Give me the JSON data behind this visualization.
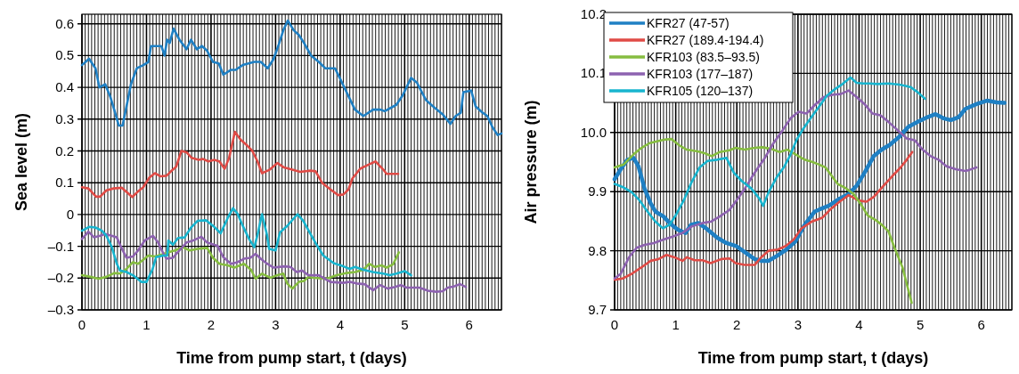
{
  "chart_data": [
    {
      "type": "line",
      "xlabel": "Time from pump start, t (days)",
      "ylabel": "Sea level (m)",
      "xlim": [
        0,
        6.5
      ],
      "ylim": [
        -0.3,
        0.63
      ],
      "xticks": [
        0,
        {
          "value": 0.05,
          "label": null
        },
        {
          "value": 0.1,
          "label": null
        },
        {
          "value": 0.15,
          "label": null
        },
        {
          "value": 0.2,
          "label": null
        },
        {
          "value": 0.25,
          "label": null
        },
        {
          "value": 0.3,
          "label": null
        },
        {
          "value": 0.35,
          "label": null
        },
        {
          "value": 0.4,
          "label": null
        },
        {
          "value": 0.45,
          "label": null
        },
        {
          "value": 0.5,
          "label": null
        },
        {
          "value": 0.55,
          "label": null
        },
        {
          "value": 0.6,
          "label": null
        },
        {
          "value": 0.65,
          "label": null
        },
        {
          "value": 0.7,
          "label": null
        },
        {
          "value": 0.75,
          "label": null
        },
        {
          "value": 0.8,
          "label": null
        },
        {
          "value": 0.85,
          "label": null
        },
        {
          "value": 0.9,
          "label": null
        },
        {
          "value": 0.95,
          "label": null
        },
        1,
        {
          "value": 1.05,
          "label": null
        },
        {
          "value": 1.1,
          "label": null
        },
        {
          "value": 1.15,
          "label": null
        },
        {
          "value": 1.2,
          "label": null
        },
        {
          "value": 1.25,
          "label": null
        },
        {
          "value": 1.3,
          "label": null
        },
        {
          "value": 1.35,
          "label": null
        },
        {
          "value": 1.4,
          "label": null
        },
        {
          "value": 1.45,
          "label": null
        },
        {
          "value": 1.5,
          "label": null
        },
        {
          "value": 1.55,
          "label": null
        },
        {
          "value": 1.6,
          "label": null
        },
        {
          "value": 1.65,
          "label": null
        },
        {
          "value": 1.7,
          "label": null
        },
        {
          "value": 1.75,
          "label": null
        },
        {
          "value": 1.8,
          "label": null
        },
        {
          "value": 1.85,
          "label": null
        },
        {
          "value": 1.9,
          "label": null
        },
        {
          "value": 1.95,
          "label": null
        },
        2,
        {
          "value": 2.05,
          "label": null
        },
        {
          "value": 2.1,
          "label": null
        },
        {
          "value": 2.15,
          "label": null
        },
        {
          "value": 2.2,
          "label": null
        },
        {
          "value": 2.25,
          "label": null
        },
        {
          "value": 2.3,
          "label": null
        },
        {
          "value": 2.35,
          "label": null
        },
        {
          "value": 2.4,
          "label": null
        },
        {
          "value": 2.45,
          "label": null
        },
        {
          "value": 2.5,
          "label": null
        },
        {
          "value": 2.55,
          "label": null
        },
        {
          "value": 2.6,
          "label": null
        },
        {
          "value": 2.65,
          "label": null
        },
        {
          "value": 2.7,
          "label": null
        },
        {
          "value": 2.75,
          "label": null
        },
        {
          "value": 2.8,
          "label": null
        },
        {
          "value": 2.85,
          "label": null
        },
        {
          "value": 2.9,
          "label": null
        },
        {
          "value": 2.95,
          "label": null
        },
        3,
        {
          "value": 3.05,
          "label": null
        },
        {
          "value": 3.1,
          "label": null
        },
        {
          "value": 3.15,
          "label": null
        },
        {
          "value": 3.2,
          "label": null
        },
        {
          "value": 3.25,
          "label": null
        },
        {
          "value": 3.3,
          "label": null
        },
        {
          "value": 3.35,
          "label": null
        },
        {
          "value": 3.4,
          "label": null
        },
        {
          "value": 3.45,
          "label": null
        },
        {
          "value": 3.5,
          "label": null
        },
        {
          "value": 3.55,
          "label": null
        },
        {
          "value": 3.6,
          "label": null
        },
        {
          "value": 3.65,
          "label": null
        },
        {
          "value": 3.7,
          "label": null
        },
        {
          "value": 3.75,
          "label": null
        },
        {
          "value": 3.8,
          "label": null
        },
        {
          "value": 3.85,
          "label": null
        },
        {
          "value": 3.9,
          "label": null
        },
        {
          "value": 3.95,
          "label": null
        },
        4,
        {
          "value": 4.05,
          "label": null
        },
        {
          "value": 4.1,
          "label": null
        },
        {
          "value": 4.15,
          "label": null
        },
        {
          "value": 4.2,
          "label": null
        },
        {
          "value": 4.25,
          "label": null
        },
        {
          "value": 4.3,
          "label": null
        },
        {
          "value": 4.35,
          "label": null
        },
        {
          "value": 4.4,
          "label": null
        },
        {
          "value": 4.45,
          "label": null
        },
        {
          "value": 4.5,
          "label": null
        },
        {
          "value": 4.55,
          "label": null
        },
        {
          "value": 4.6,
          "label": null
        },
        {
          "value": 4.65,
          "label": null
        },
        {
          "value": 4.7,
          "label": null
        },
        {
          "value": 4.75,
          "label": null
        },
        {
          "value": 4.8,
          "label": null
        },
        {
          "value": 4.85,
          "label": null
        },
        {
          "value": 4.9,
          "label": null
        },
        {
          "value": 4.95,
          "label": null
        },
        5,
        {
          "value": 5.05,
          "label": null
        },
        {
          "value": 5.1,
          "label": null
        },
        {
          "value": 5.15,
          "label": null
        },
        {
          "value": 5.2,
          "label": null
        },
        {
          "value": 5.25,
          "label": null
        },
        {
          "value": 5.3,
          "label": null
        },
        {
          "value": 5.35,
          "label": null
        },
        {
          "value": 5.4,
          "label": null
        },
        {
          "value": 5.45,
          "label": null
        },
        {
          "value": 5.5,
          "label": null
        },
        {
          "value": 5.55,
          "label": null
        },
        {
          "value": 5.6,
          "label": null
        },
        {
          "value": 5.65,
          "label": null
        },
        {
          "value": 5.7,
          "label": null
        },
        {
          "value": 5.75,
          "label": null
        },
        {
          "value": 5.8,
          "label": null
        },
        {
          "value": 5.85,
          "label": null
        },
        {
          "value": 5.9,
          "label": null
        },
        {
          "value": 5.95,
          "label": null
        },
        6,
        {
          "value": 6.05,
          "label": null
        },
        {
          "value": 6.1,
          "label": null
        },
        {
          "value": 6.15,
          "label": null
        },
        {
          "value": 6.2,
          "label": null
        },
        {
          "value": 6.25,
          "label": null
        },
        {
          "value": 6.3,
          "label": null
        },
        {
          "value": 6.35,
          "label": null
        },
        {
          "value": 6.4,
          "label": null
        },
        {
          "value": 6.45,
          "label": null
        },
        {
          "value": 6.5,
          "label": null
        }
      ],
      "yticks": [
        {
          "value": -0.3,
          "label": "–0.3"
        },
        {
          "value": -0.2,
          "label": "–0.2"
        },
        {
          "value": -0.1,
          "label": "–0.1"
        },
        0,
        0.1,
        0.2,
        0.3,
        0.4,
        0.5,
        0.6
      ],
      "grid": true,
      "line_style": "solid",
      "series": [
        {
          "color": "#1f80c4",
          "x": [
            0,
            0.11,
            0.21,
            0.27,
            0.36,
            0.44,
            0.5,
            0.57,
            0.63,
            0.69,
            0.76,
            0.85,
            0.95,
            1.03,
            1.07,
            1.18,
            1.23,
            1.28,
            1.32,
            1.36,
            1.42,
            1.51,
            1.62,
            1.69,
            1.78,
            1.86,
            1.94,
            2.03,
            2.12,
            2.19,
            2.31,
            2.38,
            2.49,
            2.67,
            2.77,
            2.88,
            2.97,
            3.05,
            3.12,
            3.19,
            3.28,
            3.36,
            3.44,
            3.55,
            3.67,
            3.77,
            3.92,
            3.97,
            4.1,
            4.23,
            4.36,
            4.51,
            4.62,
            4.69,
            4.87,
            4.97,
            5.1,
            5.19,
            5.33,
            5.44,
            5.59,
            5.71,
            5.79,
            5.87,
            5.91,
            6.03,
            6.1,
            6.21,
            6.28,
            6.36,
            6.44,
            6.5
          ],
          "values": [
            0.47,
            0.49,
            0.46,
            0.4,
            0.41,
            0.37,
            0.33,
            0.28,
            0.28,
            0.34,
            0.41,
            0.46,
            0.47,
            0.48,
            0.53,
            0.53,
            0.53,
            0.5,
            0.55,
            0.54,
            0.585,
            0.55,
            0.52,
            0.55,
            0.52,
            0.53,
            0.515,
            0.48,
            0.475,
            0.44,
            0.455,
            0.455,
            0.47,
            0.48,
            0.48,
            0.46,
            0.49,
            0.535,
            0.58,
            0.61,
            0.58,
            0.565,
            0.54,
            0.5,
            0.48,
            0.46,
            0.46,
            0.44,
            0.385,
            0.33,
            0.31,
            0.33,
            0.33,
            0.325,
            0.345,
            0.375,
            0.43,
            0.415,
            0.36,
            0.34,
            0.315,
            0.285,
            0.31,
            0.32,
            0.385,
            0.39,
            0.34,
            0.32,
            0.31,
            0.275,
            0.25,
            0.255
          ]
        },
        {
          "color": "#e04b46",
          "x": [
            0,
            0.1,
            0.22,
            0.28,
            0.38,
            0.49,
            0.62,
            0.69,
            0.78,
            0.86,
            0.95,
            1.04,
            1.13,
            1.22,
            1.31,
            1.38,
            1.46,
            1.54,
            1.62,
            1.7,
            1.81,
            1.87,
            1.96,
            2.05,
            2.13,
            2.21,
            2.28,
            2.37,
            2.46,
            2.55,
            2.64,
            2.72,
            2.79,
            2.9,
            3.03,
            3.13,
            3.26,
            3.38,
            3.54,
            3.62,
            3.72,
            3.85,
            3.97,
            4.05,
            4.13,
            4.19,
            4.31,
            4.44,
            4.55,
            4.67,
            4.72,
            4.79,
            4.9
          ],
          "values": [
            0.086,
            0.082,
            0.056,
            0.056,
            0.076,
            0.082,
            0.084,
            0.071,
            0.055,
            0.071,
            0.086,
            0.115,
            0.13,
            0.12,
            0.122,
            0.136,
            0.15,
            0.2,
            0.196,
            0.178,
            0.172,
            0.175,
            0.167,
            0.172,
            0.167,
            0.144,
            0.178,
            0.26,
            0.235,
            0.219,
            0.2,
            0.167,
            0.13,
            0.14,
            0.162,
            0.148,
            0.141,
            0.134,
            0.138,
            0.136,
            0.1,
            0.079,
            0.061,
            0.063,
            0.079,
            0.113,
            0.144,
            0.157,
            0.167,
            0.141,
            0.128,
            0.128,
            0.128
          ]
        },
        {
          "color": "#86bd40",
          "x": [
            0,
            0.13,
            0.26,
            0.38,
            0.5,
            0.59,
            0.69,
            0.79,
            0.87,
            0.97,
            1.03,
            1.13,
            1.23,
            1.33,
            1.44,
            1.56,
            1.67,
            1.79,
            1.94,
            2.03,
            2.13,
            2.26,
            2.36,
            2.51,
            2.62,
            2.69,
            2.79,
            2.92,
            3.03,
            3.12,
            3.18,
            3.26,
            3.36,
            3.44,
            3.51,
            3.59,
            3.79,
            3.95,
            4.1,
            4.23,
            4.36,
            4.45,
            4.54,
            4.64,
            4.72,
            4.82,
            4.91
          ],
          "values": [
            -0.191,
            -0.196,
            -0.202,
            -0.196,
            -0.184,
            -0.186,
            -0.171,
            -0.15,
            -0.155,
            -0.139,
            -0.129,
            -0.132,
            -0.126,
            -0.119,
            -0.113,
            -0.103,
            -0.113,
            -0.108,
            -0.105,
            -0.136,
            -0.155,
            -0.16,
            -0.167,
            -0.155,
            -0.174,
            -0.202,
            -0.186,
            -0.199,
            -0.191,
            -0.186,
            -0.217,
            -0.233,
            -0.212,
            -0.209,
            -0.196,
            -0.199,
            -0.202,
            -0.191,
            -0.184,
            -0.181,
            -0.174,
            -0.155,
            -0.165,
            -0.16,
            -0.167,
            -0.157,
            -0.119
          ]
        },
        {
          "color": "#8d62b0",
          "x": [
            0,
            0.1,
            0.19,
            0.28,
            0.36,
            0.46,
            0.54,
            0.62,
            0.69,
            0.79,
            0.87,
            0.97,
            1.1,
            1.18,
            1.26,
            1.31,
            1.41,
            1.51,
            1.62,
            1.72,
            1.85,
            1.94,
            2.04,
            2.1,
            2.19,
            2.31,
            2.41,
            2.51,
            2.61,
            2.69,
            2.77,
            2.87,
            2.97,
            3.13,
            3.23,
            3.33,
            3.41,
            3.51,
            3.67,
            3.85,
            4.05,
            4.15,
            4.26,
            4.38,
            4.51,
            4.62,
            4.74,
            4.85,
            4.94,
            5.03,
            5.23,
            5.36,
            5.49,
            5.59,
            5.67,
            5.77,
            5.86,
            5.95
          ],
          "values": [
            -0.077,
            -0.054,
            -0.072,
            -0.067,
            -0.061,
            -0.067,
            -0.072,
            -0.108,
            -0.136,
            -0.132,
            -0.113,
            -0.082,
            -0.067,
            -0.088,
            -0.122,
            -0.139,
            -0.136,
            -0.113,
            -0.088,
            -0.082,
            -0.07,
            -0.088,
            -0.095,
            -0.098,
            -0.134,
            -0.155,
            -0.15,
            -0.139,
            -0.136,
            -0.124,
            -0.139,
            -0.155,
            -0.167,
            -0.163,
            -0.165,
            -0.181,
            -0.176,
            -0.191,
            -0.191,
            -0.212,
            -0.215,
            -0.212,
            -0.217,
            -0.219,
            -0.238,
            -0.222,
            -0.233,
            -0.228,
            -0.222,
            -0.23,
            -0.23,
            -0.24,
            -0.243,
            -0.241,
            -0.23,
            -0.226,
            -0.219,
            -0.228
          ]
        },
        {
          "color": "#18b5cf",
          "x": [
            0,
            0.11,
            0.21,
            0.31,
            0.38,
            0.46,
            0.54,
            0.59,
            0.69,
            0.79,
            0.92,
            1.0,
            1.09,
            1.15,
            1.26,
            1.32,
            1.34,
            1.41,
            1.49,
            1.59,
            1.69,
            1.79,
            1.92,
            2.05,
            2.15,
            2.26,
            2.34,
            2.41,
            2.49,
            2.59,
            2.67,
            2.72,
            2.79,
            2.87,
            2.9,
            3.0,
            3.07,
            3.18,
            3.27,
            3.34,
            3.43,
            3.54,
            3.63,
            3.74,
            3.9,
            4.05,
            4.15,
            4.23,
            4.36,
            4.51,
            4.67,
            4.77,
            4.87,
            5.0,
            5.1
          ],
          "values": [
            -0.051,
            -0.039,
            -0.041,
            -0.051,
            -0.067,
            -0.101,
            -0.155,
            -0.176,
            -0.181,
            -0.191,
            -0.212,
            -0.212,
            -0.174,
            -0.134,
            -0.129,
            -0.129,
            -0.082,
            -0.095,
            -0.074,
            -0.072,
            -0.041,
            -0.02,
            -0.018,
            -0.039,
            -0.059,
            -0.01,
            0.02,
            0.003,
            -0.035,
            -0.077,
            -0.103,
            -0.064,
            0.001,
            -0.067,
            -0.108,
            -0.113,
            -0.056,
            -0.036,
            -0.015,
            0.001,
            -0.02,
            -0.061,
            -0.093,
            -0.129,
            -0.153,
            -0.163,
            -0.171,
            -0.165,
            -0.174,
            -0.181,
            -0.186,
            -0.191,
            -0.186,
            -0.178,
            -0.191
          ]
        }
      ]
    },
    {
      "type": "line",
      "xlabel": "Time from pump start, t (days)",
      "ylabel": "Air pressure (m)",
      "xlim": [
        0,
        6.5
      ],
      "ylim": [
        9.7,
        10.2
      ],
      "xticks": [
        0,
        {
          "value": 0.05,
          "label": null
        },
        {
          "value": 0.1,
          "label": null
        },
        {
          "value": 0.15,
          "label": null
        },
        {
          "value": 0.2,
          "label": null
        },
        {
          "value": 0.25,
          "label": null
        },
        {
          "value": 0.3,
          "label": null
        },
        {
          "value": 0.35,
          "label": null
        },
        {
          "value": 0.4,
          "label": null
        },
        {
          "value": 0.45,
          "label": null
        },
        {
          "value": 0.5,
          "label": null
        },
        {
          "value": 0.55,
          "label": null
        },
        {
          "value": 0.6,
          "label": null
        },
        {
          "value": 0.65,
          "label": null
        },
        {
          "value": 0.7,
          "label": null
        },
        {
          "value": 0.75,
          "label": null
        },
        {
          "value": 0.8,
          "label": null
        },
        {
          "value": 0.85,
          "label": null
        },
        {
          "value": 0.9,
          "label": null
        },
        {
          "value": 0.95,
          "label": null
        },
        1,
        {
          "value": 1.05,
          "label": null
        },
        {
          "value": 1.1,
          "label": null
        },
        {
          "value": 1.15,
          "label": null
        },
        {
          "value": 1.2,
          "label": null
        },
        {
          "value": 1.25,
          "label": null
        },
        {
          "value": 1.3,
          "label": null
        },
        {
          "value": 1.35,
          "label": null
        },
        {
          "value": 1.4,
          "label": null
        },
        {
          "value": 1.45,
          "label": null
        },
        {
          "value": 1.5,
          "label": null
        },
        {
          "value": 1.55,
          "label": null
        },
        {
          "value": 1.6,
          "label": null
        },
        {
          "value": 1.65,
          "label": null
        },
        {
          "value": 1.7,
          "label": null
        },
        {
          "value": 1.75,
          "label": null
        },
        {
          "value": 1.8,
          "label": null
        },
        {
          "value": 1.85,
          "label": null
        },
        {
          "value": 1.9,
          "label": null
        },
        {
          "value": 1.95,
          "label": null
        },
        2,
        {
          "value": 2.05,
          "label": null
        },
        {
          "value": 2.1,
          "label": null
        },
        {
          "value": 2.15,
          "label": null
        },
        {
          "value": 2.2,
          "label": null
        },
        {
          "value": 2.25,
          "label": null
        },
        {
          "value": 2.3,
          "label": null
        },
        {
          "value": 2.35,
          "label": null
        },
        {
          "value": 2.4,
          "label": null
        },
        {
          "value": 2.45,
          "label": null
        },
        {
          "value": 2.5,
          "label": null
        },
        {
          "value": 2.55,
          "label": null
        },
        {
          "value": 2.6,
          "label": null
        },
        {
          "value": 2.65,
          "label": null
        },
        {
          "value": 2.7,
          "label": null
        },
        {
          "value": 2.75,
          "label": null
        },
        {
          "value": 2.8,
          "label": null
        },
        {
          "value": 2.85,
          "label": null
        },
        {
          "value": 2.9,
          "label": null
        },
        {
          "value": 2.95,
          "label": null
        },
        3,
        {
          "value": 3.05,
          "label": null
        },
        {
          "value": 3.1,
          "label": null
        },
        {
          "value": 3.15,
          "label": null
        },
        {
          "value": 3.2,
          "label": null
        },
        {
          "value": 3.25,
          "label": null
        },
        {
          "value": 3.3,
          "label": null
        },
        {
          "value": 3.35,
          "label": null
        },
        {
          "value": 3.4,
          "label": null
        },
        {
          "value": 3.45,
          "label": null
        },
        {
          "value": 3.5,
          "label": null
        },
        {
          "value": 3.55,
          "label": null
        },
        {
          "value": 3.6,
          "label": null
        },
        {
          "value": 3.65,
          "label": null
        },
        {
          "value": 3.7,
          "label": null
        },
        {
          "value": 3.75,
          "label": null
        },
        {
          "value": 3.8,
          "label": null
        },
        {
          "value": 3.85,
          "label": null
        },
        {
          "value": 3.9,
          "label": null
        },
        {
          "value": 3.95,
          "label": null
        },
        4,
        {
          "value": 4.05,
          "label": null
        },
        {
          "value": 4.1,
          "label": null
        },
        {
          "value": 4.15,
          "label": null
        },
        {
          "value": 4.2,
          "label": null
        },
        {
          "value": 4.25,
          "label": null
        },
        {
          "value": 4.3,
          "label": null
        },
        {
          "value": 4.35,
          "label": null
        },
        {
          "value": 4.4,
          "label": null
        },
        {
          "value": 4.45,
          "label": null
        },
        {
          "value": 4.5,
          "label": null
        },
        {
          "value": 4.55,
          "label": null
        },
        {
          "value": 4.6,
          "label": null
        },
        {
          "value": 4.65,
          "label": null
        },
        {
          "value": 4.7,
          "label": null
        },
        {
          "value": 4.75,
          "label": null
        },
        {
          "value": 4.8,
          "label": null
        },
        {
          "value": 4.85,
          "label": null
        },
        {
          "value": 4.9,
          "label": null
        },
        {
          "value": 4.95,
          "label": null
        },
        5,
        {
          "value": 5.05,
          "label": null
        },
        {
          "value": 5.1,
          "label": null
        },
        {
          "value": 5.15,
          "label": null
        },
        {
          "value": 5.2,
          "label": null
        },
        {
          "value": 5.25,
          "label": null
        },
        {
          "value": 5.3,
          "label": null
        },
        {
          "value": 5.35,
          "label": null
        },
        {
          "value": 5.4,
          "label": null
        },
        {
          "value": 5.45,
          "label": null
        },
        {
          "value": 5.5,
          "label": null
        },
        {
          "value": 5.55,
          "label": null
        },
        {
          "value": 5.6,
          "label": null
        },
        {
          "value": 5.65,
          "label": null
        },
        {
          "value": 5.7,
          "label": null
        },
        {
          "value": 5.75,
          "label": null
        },
        {
          "value": 5.8,
          "label": null
        },
        {
          "value": 5.85,
          "label": null
        },
        {
          "value": 5.9,
          "label": null
        },
        {
          "value": 5.95,
          "label": null
        },
        6,
        {
          "value": 6.05,
          "label": null
        },
        {
          "value": 6.1,
          "label": null
        },
        {
          "value": 6.15,
          "label": null
        },
        {
          "value": 6.2,
          "label": null
        },
        {
          "value": 6.25,
          "label": null
        },
        {
          "value": 6.3,
          "label": null
        },
        {
          "value": 6.35,
          "label": null
        },
        {
          "value": 6.4,
          "label": null
        },
        {
          "value": 6.45,
          "label": null
        },
        {
          "value": 6.5,
          "label": null
        }
      ],
      "yticks": [
        9.7,
        9.8,
        9.9,
        {
          "value": 10,
          "label": "10.0"
        },
        10.1,
        10.2
      ],
      "grid": true,
      "legend": "top left",
      "line_style": "solid",
      "series": [
        {
          "name": "KFR27 (47-57)",
          "color": "#1f80c4",
          "x": [
            0,
            0.1,
            0.21,
            0.31,
            0.39,
            0.49,
            0.59,
            0.67,
            0.8,
            0.9,
            1.03,
            1.16,
            1.25,
            1.37,
            1.52,
            1.68,
            1.83,
            1.99,
            2.14,
            2.29,
            2.4,
            2.52,
            2.65,
            2.81,
            2.96,
            3.11,
            3.27,
            3.4,
            3.52,
            3.68,
            3.83,
            3.96,
            4.09,
            4.24,
            4.37,
            4.5,
            4.66,
            4.81,
            4.96,
            5.12,
            5.25,
            5.38,
            5.5,
            5.63,
            5.74,
            5.92,
            6.1,
            6.25,
            6.38
          ],
          "values": [
            9.921,
            9.938,
            9.954,
            9.957,
            9.943,
            9.905,
            9.88,
            9.866,
            9.858,
            9.847,
            9.836,
            9.83,
            9.844,
            9.847,
            9.836,
            9.822,
            9.813,
            9.808,
            9.797,
            9.786,
            9.783,
            9.783,
            9.791,
            9.802,
            9.816,
            9.844,
            9.866,
            9.872,
            9.877,
            9.888,
            9.896,
            9.91,
            9.932,
            9.96,
            9.971,
            9.979,
            9.993,
            10.01,
            10.018,
            10.026,
            10.031,
            10.024,
            10.021,
            10.026,
            10.04,
            10.048,
            10.054,
            10.051,
            10.05
          ]
        },
        {
          "name": "KFR27 (189.4-194.4)",
          "color": "#e04b46",
          "x": [
            0,
            0.13,
            0.28,
            0.44,
            0.59,
            0.72,
            0.85,
            0.98,
            1.11,
            1.18,
            1.31,
            1.44,
            1.57,
            1.75,
            1.88,
            1.98,
            2.13,
            2.29,
            2.39,
            2.52,
            2.67,
            2.8,
            2.93,
            3.06,
            3.22,
            3.4,
            3.52,
            3.68,
            3.83,
            3.99,
            4.12,
            4.24,
            4.4,
            4.55,
            4.68,
            4.78,
            4.87
          ],
          "values": [
            9.751,
            9.753,
            9.761,
            9.772,
            9.783,
            9.786,
            9.793,
            9.789,
            9.783,
            9.789,
            9.784,
            9.784,
            9.779,
            9.786,
            9.787,
            9.779,
            9.776,
            9.776,
            9.788,
            9.8,
            9.802,
            9.808,
            9.819,
            9.838,
            9.849,
            9.856,
            9.869,
            9.883,
            9.894,
            9.885,
            9.883,
            9.891,
            9.91,
            9.927,
            9.941,
            9.954,
            9.967
          ]
        },
        {
          "name": "KFR103 (83.5–93.5)",
          "color": "#86bd40",
          "x": [
            0,
            0.15,
            0.31,
            0.44,
            0.57,
            0.69,
            0.82,
            0.93,
            1.05,
            1.18,
            1.36,
            1.47,
            1.59,
            1.72,
            1.88,
            1.98,
            2.13,
            2.29,
            2.42,
            2.57,
            2.7,
            2.83,
            2.96,
            3.11,
            3.24,
            3.34,
            3.45,
            3.55,
            3.65,
            3.78,
            3.91,
            4.04,
            4.14,
            4.27,
            4.37,
            4.48,
            4.58,
            4.71,
            4.78,
            4.86
          ],
          "values": [
            9.941,
            9.946,
            9.963,
            9.974,
            9.982,
            9.985,
            9.988,
            9.989,
            9.979,
            9.971,
            9.968,
            9.965,
            9.96,
            9.967,
            9.97,
            9.974,
            9.971,
            9.974,
            9.975,
            9.972,
            9.967,
            9.971,
            9.963,
            9.954,
            9.95,
            9.946,
            9.941,
            9.927,
            9.913,
            9.906,
            9.896,
            9.877,
            9.86,
            9.852,
            9.844,
            9.833,
            9.805,
            9.772,
            9.744,
            9.712
          ]
        },
        {
          "name": "KFR103 (177–187)",
          "color": "#8d62b0",
          "x": [
            0,
            0.1,
            0.23,
            0.36,
            0.49,
            0.64,
            0.8,
            0.95,
            1.11,
            1.26,
            1.44,
            1.57,
            1.72,
            1.88,
            1.98,
            2.13,
            2.29,
            2.44,
            2.6,
            2.75,
            2.88,
            3.01,
            3.14,
            3.27,
            3.42,
            3.58,
            3.7,
            3.83,
            3.96,
            4.09,
            4.22,
            4.35,
            4.48,
            4.63,
            4.78,
            4.91,
            5.04,
            5.17,
            5.3,
            5.43,
            5.58,
            5.74,
            5.81,
            5.92
          ],
          "values": [
            9.753,
            9.761,
            9.788,
            9.805,
            9.81,
            9.813,
            9.819,
            9.824,
            9.83,
            9.841,
            9.847,
            9.849,
            9.858,
            9.869,
            9.883,
            9.905,
            9.932,
            9.954,
            9.982,
            10.004,
            10.024,
            10.035,
            10.032,
            10.046,
            10.06,
            10.064,
            10.065,
            10.071,
            10.06,
            10.048,
            10.032,
            10.029,
            10.018,
            10.004,
            9.99,
            9.987,
            9.971,
            9.96,
            9.954,
            9.943,
            9.938,
            9.935,
            9.937,
            9.941
          ]
        },
        {
          "name": "KFR105 (120–137)",
          "color": "#18b5cf",
          "x": [
            0,
            0.15,
            0.28,
            0.41,
            0.54,
            0.67,
            0.79,
            0.9,
            1.0,
            1.13,
            1.26,
            1.39,
            1.52,
            1.68,
            1.83,
            1.95,
            2.08,
            2.24,
            2.37,
            2.43,
            2.52,
            2.65,
            2.78,
            2.88,
            2.98,
            3.09,
            3.22,
            3.34,
            3.47,
            3.6,
            3.73,
            3.86,
            3.96,
            4.06,
            4.17,
            4.3,
            4.48,
            4.66,
            4.84,
            4.96,
            5.08
          ],
          "values": [
            9.913,
            9.907,
            9.899,
            9.885,
            9.866,
            9.849,
            9.838,
            9.844,
            9.86,
            9.885,
            9.916,
            9.941,
            9.952,
            9.954,
            9.957,
            9.932,
            9.918,
            9.905,
            9.888,
            9.876,
            9.899,
            9.924,
            9.943,
            9.963,
            9.988,
            10.007,
            10.026,
            10.043,
            10.062,
            10.073,
            10.082,
            10.093,
            10.084,
            10.083,
            10.083,
            10.082,
            10.083,
            10.081,
            10.077,
            10.068,
            10.057
          ]
        }
      ]
    }
  ]
}
